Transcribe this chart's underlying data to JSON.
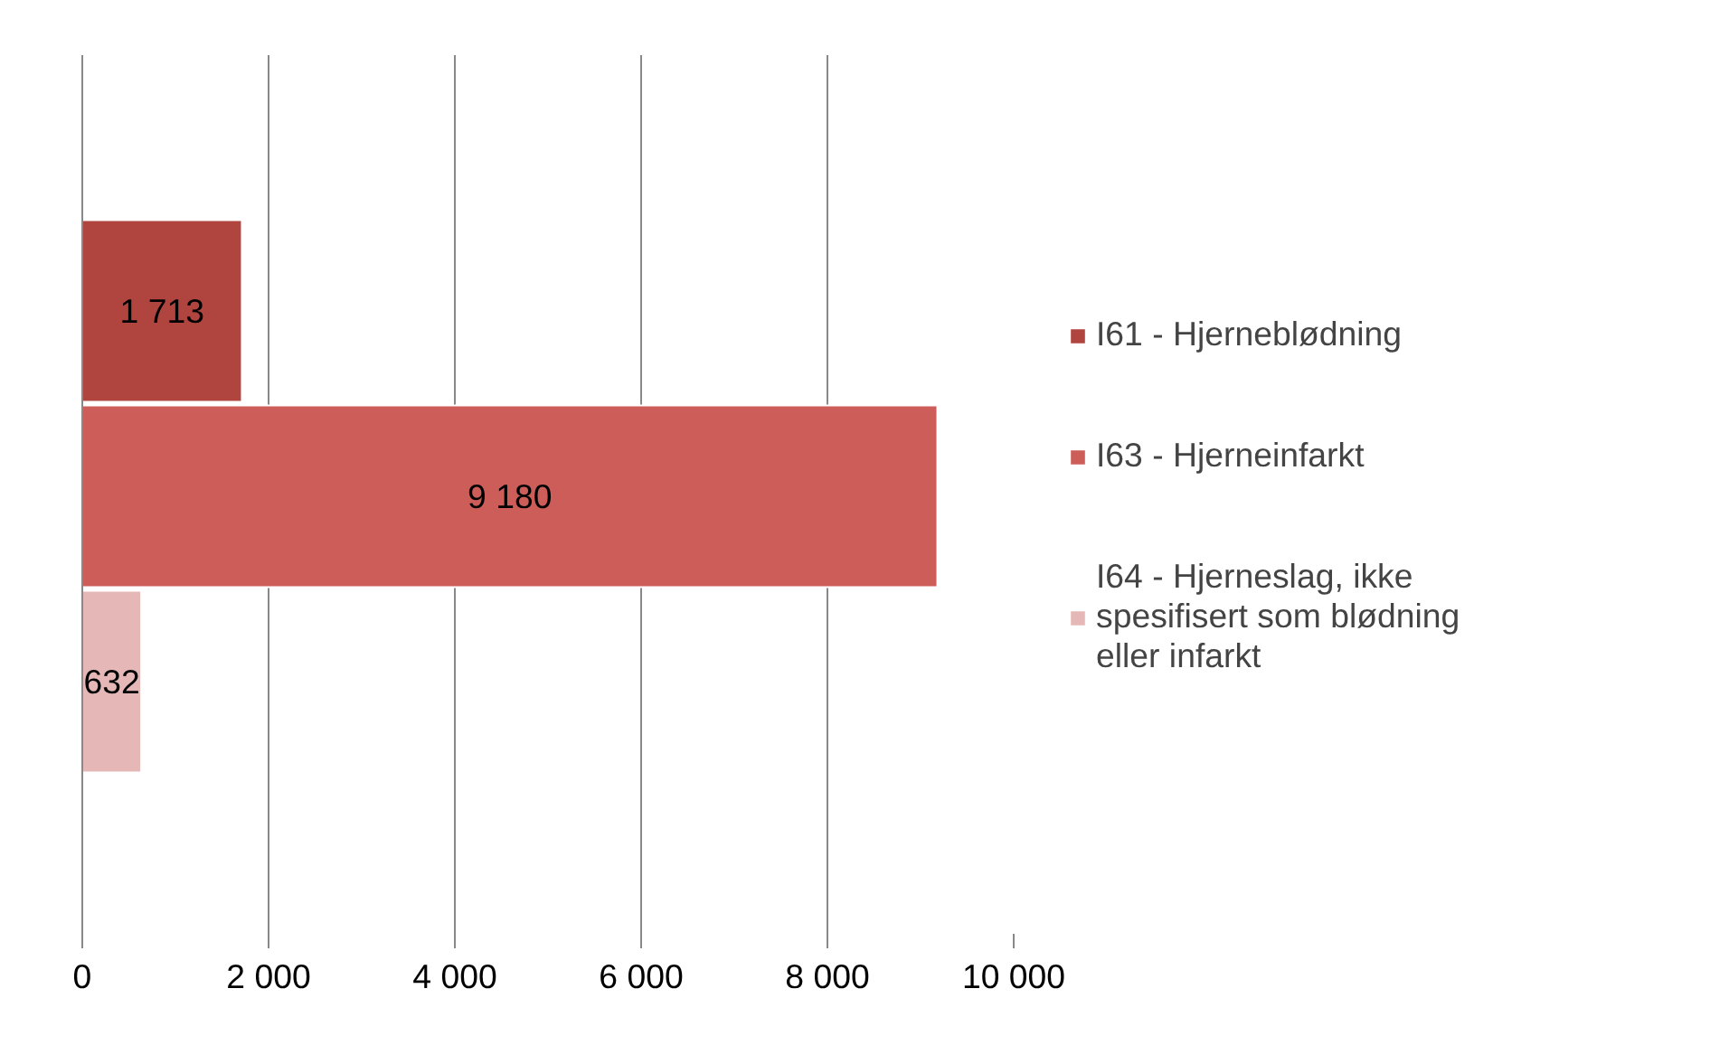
{
  "chart_data": {
    "type": "bar",
    "orientation": "horizontal",
    "categories": [
      null
    ],
    "series": [
      {
        "name": "I61 - Hjerneblødning",
        "color": "#b0443f",
        "values": [
          1713
        ],
        "value_labels": [
          "1 713"
        ]
      },
      {
        "name": "I63 - Hjerneinfarkt",
        "color": "#cd5d58",
        "values": [
          9180
        ],
        "value_labels": [
          "9 180"
        ]
      },
      {
        "name": "I64 - Hjerneslag, ikke spesifisert som blødning eller infarkt",
        "color": "#e5b8b7",
        "values": [
          632
        ],
        "value_labels": [
          "632"
        ]
      }
    ],
    "xlim": [
      0,
      10000
    ],
    "xticks": [
      0,
      {
        "value": 2000,
        "label": "2 000"
      },
      {
        "value": 4000,
        "label": "4 000"
      },
      {
        "value": 6000,
        "label": "6 000"
      },
      {
        "value": 8000,
        "label": "8 000"
      },
      {
        "value": 10000,
        "label": "10 000"
      }
    ],
    "grid": "x",
    "legend": "right"
  }
}
